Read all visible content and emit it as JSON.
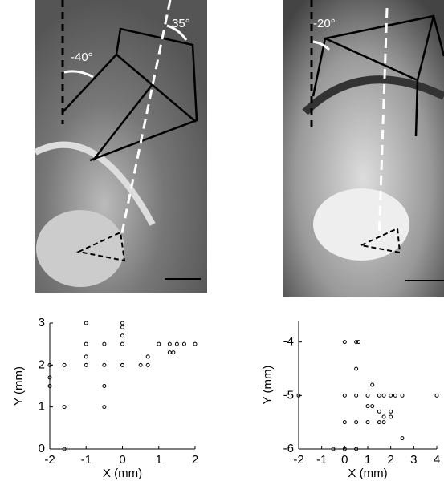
{
  "panels": [
    {
      "labels": [
        "-40°",
        "35°"
      ]
    },
    {
      "labels": [
        "-20°"
      ]
    }
  ],
  "chart_data": [
    {
      "type": "scatter",
      "xlabel": "X (mm)",
      "ylabel": "Y (mm)",
      "color": "#000000",
      "xlim": [
        -2,
        2
      ],
      "ylim": [
        0,
        3
      ],
      "xticks": [
        -2,
        -1,
        0,
        1,
        2
      ],
      "yticks": [
        0,
        1,
        2,
        3
      ],
      "x": [
        -2,
        -2,
        -2,
        -1.6,
        -1.6,
        -1.6,
        -1,
        -1,
        -1,
        -1,
        -0.5,
        -0.5,
        -0.5,
        -0.5,
        0,
        0,
        0,
        0,
        0,
        0,
        0.5,
        0.7,
        0.7,
        1,
        1.3,
        1.3,
        1.4,
        1.5,
        1.7,
        2
      ],
      "y": [
        2,
        1.5,
        1.7,
        2,
        1,
        0,
        3,
        2.5,
        2.2,
        2,
        2.5,
        2,
        1.5,
        1,
        3,
        2.9,
        2.7,
        2.5,
        2,
        2,
        2,
        2,
        2.2,
        2.5,
        2.3,
        2.5,
        2.3,
        2.5,
        2.5,
        2.5
      ]
    },
    {
      "type": "scatter",
      "xlabel": "X (mm)",
      "ylabel": "Y (mm)",
      "color": "#000000",
      "xlim": [
        -2,
        4
      ],
      "ylim": [
        -6,
        -3.6
      ],
      "xticks": [
        -2,
        -1,
        0,
        1,
        2,
        3,
        4
      ],
      "yticks": [
        -6,
        -5,
        -4
      ],
      "x": [
        -2,
        -0.5,
        0,
        0,
        0,
        0,
        0.5,
        0.5,
        0.5,
        0.5,
        0.5,
        0.6,
        1,
        1,
        1,
        1.2,
        1.2,
        1.5,
        1.5,
        1.5,
        1.7,
        1.7,
        1.7,
        2,
        2,
        2,
        2.2,
        2.5,
        2.5,
        4
      ],
      "y": [
        -5,
        -6,
        -4,
        -5,
        -5.5,
        -6,
        -4,
        -4.5,
        -5,
        -5.5,
        -6,
        -4,
        -5,
        -5.5,
        -5.2,
        -5.2,
        -4.8,
        -5,
        -5.3,
        -5.5,
        -5.5,
        -5.4,
        -5,
        -5,
        -5.3,
        -5.4,
        -5,
        -5,
        -5.8,
        -5
      ]
    }
  ]
}
